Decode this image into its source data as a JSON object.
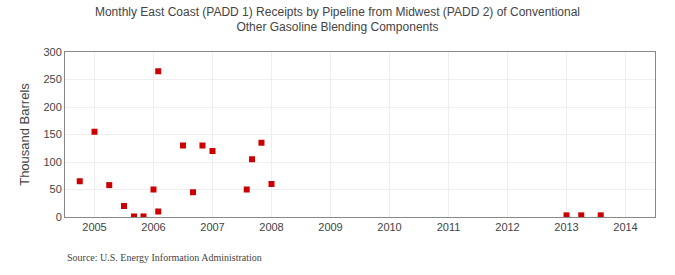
{
  "chart_data": {
    "type": "scatter",
    "title": "Monthly East Coast (PADD 1) Receipts by Pipeline from Midwest (PADD 2) of Conventional\nOther Gasoline Blending Components",
    "ylabel": "Thousand Barrels",
    "annotations": [
      "Source: U.S. Energy Information Administration"
    ],
    "color": "#cc0000",
    "marker": "square",
    "grid": true,
    "xlim": [
      2004.5,
      2014.5
    ],
    "xticks": [
      2005,
      2006,
      2007,
      2008,
      2009,
      2010,
      2011,
      2012,
      2013,
      2014
    ],
    "ylim": [
      0,
      300
    ],
    "yticks": [
      0,
      50,
      100,
      150,
      200,
      250,
      300
    ],
    "x": [
      2004.75,
      2005.0,
      2005.25,
      2005.5,
      2005.67,
      2005.83,
      2006.0,
      2006.08,
      2006.08,
      2006.5,
      2006.67,
      2006.83,
      2007.0,
      2007.58,
      2007.67,
      2007.83,
      2008.0,
      2013.0,
      2013.25,
      2013.58
    ],
    "values": [
      65,
      155,
      58,
      20,
      1,
      1,
      50,
      10,
      265,
      130,
      45,
      130,
      120,
      50,
      105,
      135,
      60,
      3,
      3,
      3
    ]
  }
}
